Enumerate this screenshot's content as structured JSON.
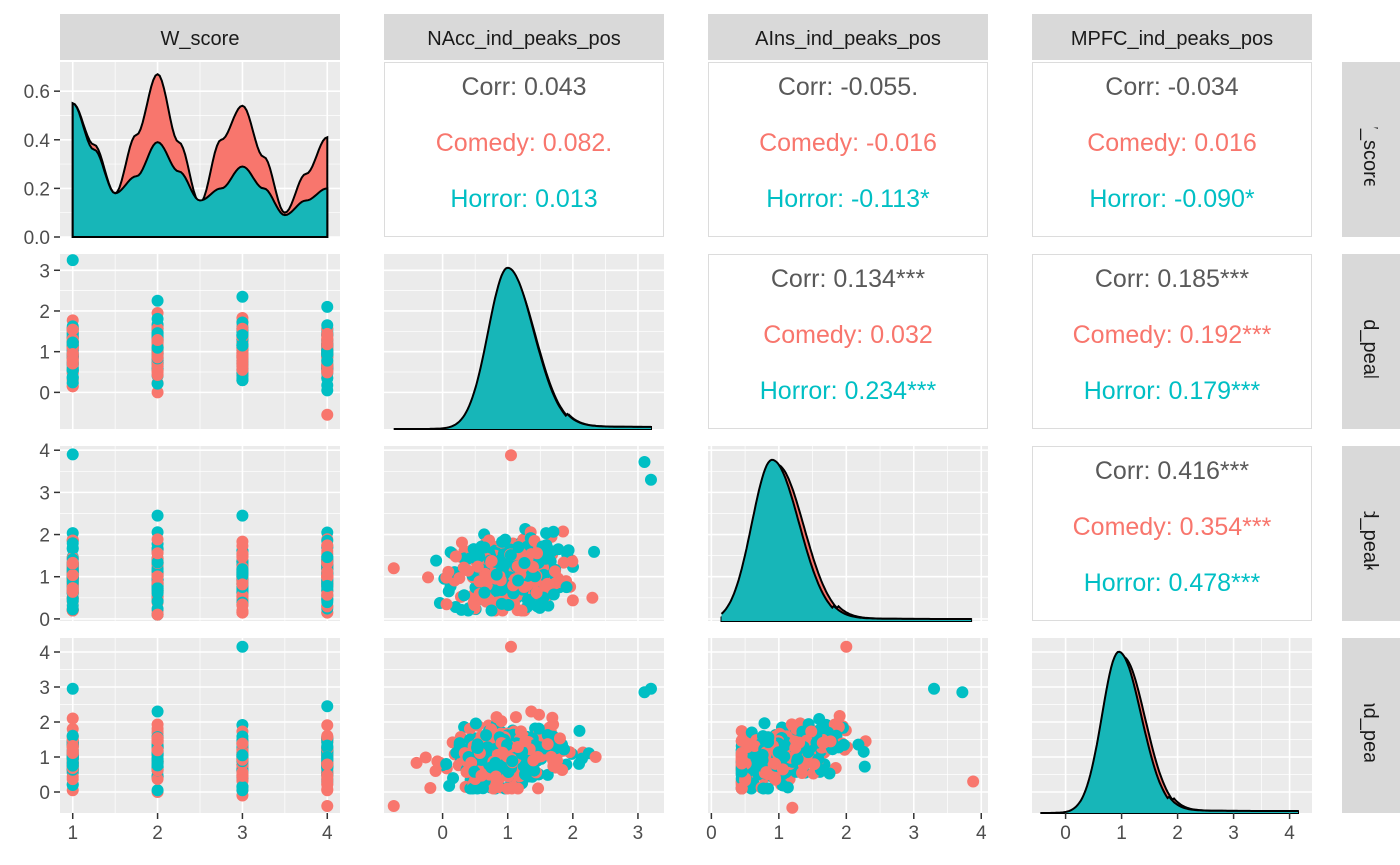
{
  "chart_data": {
    "type": "pairs",
    "variables": [
      "W_score",
      "NAcc_ind_peaks_pos",
      "AIns_ind_peaks_pos",
      "MPFC_ind_peaks_pos"
    ],
    "row_strip_labels": [
      "W_score",
      "NAcc_ind_peaks_pos",
      "AIns_ind_peaks_pos",
      "MPFC_ind_peaks_pos"
    ],
    "groups": [
      {
        "name": "Comedy",
        "color": "#F8766D"
      },
      {
        "name": "Horror",
        "color": "#00BFC4"
      }
    ],
    "fill_colors": {
      "Comedy": "#F8766D",
      "Horror": "#17B6B8"
    },
    "text_color": "#595959",
    "panel_bg": "#EBEBEB",
    "strip_bg": "#D9D9D9",
    "axes": {
      "W_score": {
        "lim": [
          0.85,
          4.15
        ],
        "ticks": [
          1,
          2,
          3,
          4
        ],
        "tick_labels": [
          "1",
          "2",
          "3",
          "4"
        ]
      },
      "NAcc_ind_peaks_pos": {
        "lim": [
          -0.9,
          3.4
        ],
        "ticks": [
          0,
          1,
          2,
          3
        ],
        "tick_labels": [
          "0",
          "1",
          "2",
          "3"
        ]
      },
      "AIns_ind_peaks_pos": {
        "lim": [
          -0.05,
          4.1
        ],
        "ticks": [
          0,
          1,
          2,
          3,
          4
        ],
        "tick_labels": [
          "0",
          "1",
          "2",
          "3",
          "4"
        ]
      },
      "MPFC_ind_peaks_pos": {
        "lim": [
          -0.6,
          4.4
        ],
        "ticks": [
          0,
          1,
          2,
          3,
          4
        ],
        "tick_labels": [
          "0",
          "1",
          "2",
          "3",
          "4"
        ]
      }
    },
    "diag_density_axis": {
      "lim": [
        0,
        0.72
      ],
      "ticks": [
        0,
        0.2,
        0.4,
        0.6
      ],
      "tick_labels": [
        "0.0",
        "0.2",
        "0.4",
        "0.6"
      ]
    },
    "correlations": [
      {
        "row": 0,
        "col": 1,
        "corr": "Corr: 0.043",
        "comedy": "Comedy: 0.082.",
        "horror": "Horror: 0.013"
      },
      {
        "row": 0,
        "col": 2,
        "corr": "Corr: -0.055.",
        "comedy": "Comedy: -0.016",
        "horror": "Horror: -0.113*"
      },
      {
        "row": 0,
        "col": 3,
        "corr": "Corr: -0.034",
        "comedy": "Comedy: 0.016",
        "horror": "Horror: -0.090*"
      },
      {
        "row": 1,
        "col": 2,
        "corr": "Corr: 0.134***",
        "comedy": "Comedy: 0.032",
        "horror": "Horror: 0.234***"
      },
      {
        "row": 1,
        "col": 3,
        "corr": "Corr: 0.185***",
        "comedy": "Comedy: 0.192***",
        "horror": "Horror: 0.179***"
      },
      {
        "row": 2,
        "col": 3,
        "corr": "Corr: 0.416***",
        "comedy": "Comedy: 0.354***",
        "horror": "Horror: 0.478***"
      }
    ],
    "w_score_density": {
      "x": [
        1.0,
        1.25,
        1.5,
        1.75,
        2.0,
        2.25,
        2.5,
        2.75,
        3.0,
        3.25,
        3.5,
        3.75,
        4.0
      ],
      "comedy": [
        0.55,
        0.38,
        0.18,
        0.42,
        0.67,
        0.39,
        0.14,
        0.4,
        0.54,
        0.33,
        0.1,
        0.26,
        0.41
      ],
      "horror": [
        0.55,
        0.36,
        0.18,
        0.25,
        0.39,
        0.27,
        0.15,
        0.2,
        0.29,
        0.2,
        0.09,
        0.15,
        0.2
      ]
    },
    "diag_density": [
      {
        "var": "NAcc_ind_peaks_pos",
        "x_range": [
          -0.75,
          3.2
        ],
        "comedy_mode": 1.0,
        "horror_mode": 1.0,
        "peak_scale": 1.0
      },
      {
        "var": "AIns_ind_peaks_pos",
        "x_range": [
          0.15,
          3.85
        ],
        "comedy_mode": 0.95,
        "horror_mode": 0.9,
        "peak_scale": 1.0
      },
      {
        "var": "MPFC_ind_peaks_pos",
        "x_range": [
          -0.45,
          4.15
        ],
        "comedy_mode": 1.0,
        "horror_mode": 0.95,
        "peak_scale": 1.0
      }
    ],
    "w_score_levels": [
      1,
      2,
      3,
      4
    ],
    "w_score_strip_ranges": {
      "NAcc_ind_peaks_pos": [
        [
          0.15,
          3.25
        ],
        [
          0.0,
          2.25
        ],
        [
          0.3,
          2.35
        ],
        [
          -0.55,
          2.1
        ]
      ],
      "AIns_ind_peaks_pos": [
        [
          0.2,
          3.9
        ],
        [
          0.1,
          2.45
        ],
        [
          0.15,
          2.45
        ],
        [
          0.15,
          2.05
        ]
      ],
      "MPFC_ind_peaks_pos": [
        [
          0.05,
          2.95
        ],
        [
          0.0,
          2.3
        ],
        [
          -0.1,
          4.15
        ],
        [
          -0.4,
          2.45
        ]
      ]
    },
    "notable_points": {
      "nacc_ains": [
        {
          "x": -0.75,
          "y": 1.2,
          "group": "Comedy"
        },
        {
          "x": 1.05,
          "y": 3.88,
          "group": "Comedy"
        },
        {
          "x": 3.1,
          "y": 3.72,
          "group": "Horror"
        },
        {
          "x": 3.2,
          "y": 3.3,
          "group": "Horror"
        },
        {
          "x": 2.3,
          "y": 0.5,
          "group": "Comedy"
        }
      ],
      "nacc_mpfc": [
        {
          "x": -0.75,
          "y": -0.4,
          "group": "Comedy"
        },
        {
          "x": 1.05,
          "y": 4.15,
          "group": "Comedy"
        },
        {
          "x": 3.1,
          "y": 2.85,
          "group": "Horror"
        },
        {
          "x": 3.2,
          "y": 2.95,
          "group": "Horror"
        },
        {
          "x": 2.35,
          "y": 1.0,
          "group": "Comedy"
        }
      ],
      "ains_mpfc": [
        {
          "x": 2.0,
          "y": 4.15,
          "group": "Comedy"
        },
        {
          "x": 3.3,
          "y": 2.95,
          "group": "Horror"
        },
        {
          "x": 3.72,
          "y": 2.85,
          "group": "Horror"
        },
        {
          "x": 3.88,
          "y": 0.3,
          "group": "Comedy"
        },
        {
          "x": 1.2,
          "y": -0.45,
          "group": "Comedy"
        }
      ]
    }
  }
}
